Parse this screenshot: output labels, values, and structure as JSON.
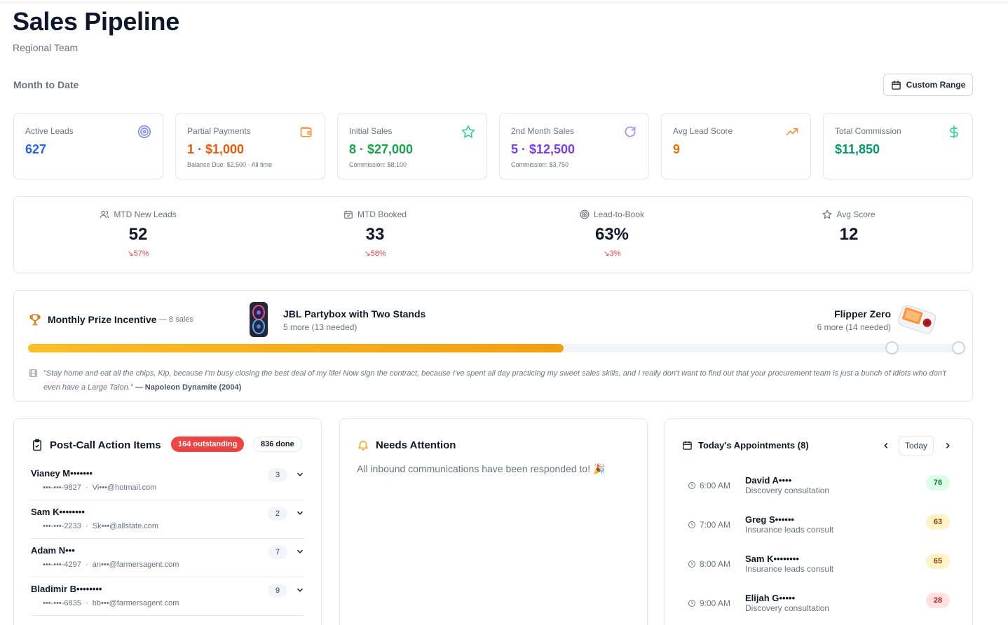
{
  "header": {
    "title": "Sales Pipeline",
    "subtitle": "Regional Team"
  },
  "period": {
    "label": "Month to Date",
    "custom_range_label": "Custom Range"
  },
  "stats": [
    {
      "label": "Active Leads",
      "value": "627",
      "sub": "",
      "color": "#2563eb",
      "icon": "target-icon"
    },
    {
      "label": "Partial Payments",
      "value": "1 · $1,000",
      "sub": "Balance Due: $2,500 · All time",
      "color": "#ea580c",
      "icon": "wallet-icon"
    },
    {
      "label": "Initial Sales",
      "value": "8 · $27,000",
      "sub": "Commission: $8,100",
      "color": "#16a34a",
      "icon": "star-icon"
    },
    {
      "label": "2nd Month Sales",
      "value": "5 · $12,500",
      "sub": "Commission: $3,750",
      "color": "#7c3aed",
      "icon": "refresh-icon"
    },
    {
      "label": "Avg Lead Score",
      "value": "9",
      "sub": "",
      "color": "#d97706",
      "icon": "trending-up-icon"
    },
    {
      "label": "Total Commission",
      "value": "$11,850",
      "sub": "",
      "color": "#059669",
      "icon": "dollar-icon"
    }
  ],
  "mtd": [
    {
      "label": "MTD New Leads",
      "value": "52",
      "change": "57%",
      "icon": "users-icon"
    },
    {
      "label": "MTD Booked",
      "value": "33",
      "change": "58%",
      "icon": "calendar-check-icon"
    },
    {
      "label": "Lead-to-Book",
      "value": "63%",
      "change": "3%",
      "icon": "target-icon"
    },
    {
      "label": "Avg Score",
      "value": "12",
      "change": "",
      "icon": "star-icon"
    }
  ],
  "prize": {
    "title": "Monthly Prize Incentive",
    "sales": "— 8 sales",
    "progress": 0.575,
    "item1_name": "JBL Partybox with Two Stands",
    "item1_sub": "5 more (13 needed)",
    "item2_name": "Flipper Zero",
    "item2_sub": "6 more (14 needed)",
    "quote": "\"Stay home and eat all the chips, Kip, because I'm busy closing the best deal of my life! Now sign the contract, because I've spent all day practicing my sweet sales skills, and I really don't want to find out that your procurement team is just a bunch of idiots who don't even have a Large Talon.\"",
    "quote_source": "— Napoleon Dynamite (2004)"
  },
  "actions": {
    "title": "Post-Call Action Items",
    "outstanding": "164 outstanding",
    "done": "836 done",
    "items": [
      {
        "name": "Vianey M•••••••",
        "phone": "•••-•••-9827",
        "email": "Vi•••@hotmail.com",
        "count": "3"
      },
      {
        "name": "Sam K••••••••",
        "phone": "•••-•••-2233",
        "email": "Sk•••@allstate.com",
        "count": "2"
      },
      {
        "name": "Adam N•••",
        "phone": "•••-•••-4297",
        "email": "an•••@farmersagent.com",
        "count": "7"
      },
      {
        "name": "Bladimir B••••••••",
        "phone": "•••-•••-6835",
        "email": "bb•••@farmersagent.com",
        "count": "9"
      }
    ]
  },
  "attention": {
    "title": "Needs Attention",
    "message": "All inbound communications have been responded to! 🎉"
  },
  "appointments": {
    "title": "Today's Appointments (8)",
    "today_label": "Today",
    "items": [
      {
        "time": "6:00 AM",
        "name": "David A••••",
        "type": "Discovery consultation",
        "score": "76",
        "bg": "#dcfce7",
        "fg": "#15803d"
      },
      {
        "time": "7:00 AM",
        "name": "Greg S••••••",
        "type": "Insurance leads consult",
        "score": "63",
        "bg": "#fef3c7",
        "fg": "#92400e"
      },
      {
        "time": "8:00 AM",
        "name": "Sam K••••••••",
        "type": "Insurance leads consult",
        "score": "65",
        "bg": "#fef3c7",
        "fg": "#92400e"
      },
      {
        "time": "9:00 AM",
        "name": "Elijah G•••••",
        "type": "Discovery consultation",
        "score": "28",
        "bg": "#fee2e2",
        "fg": "#b91c1c"
      }
    ]
  }
}
